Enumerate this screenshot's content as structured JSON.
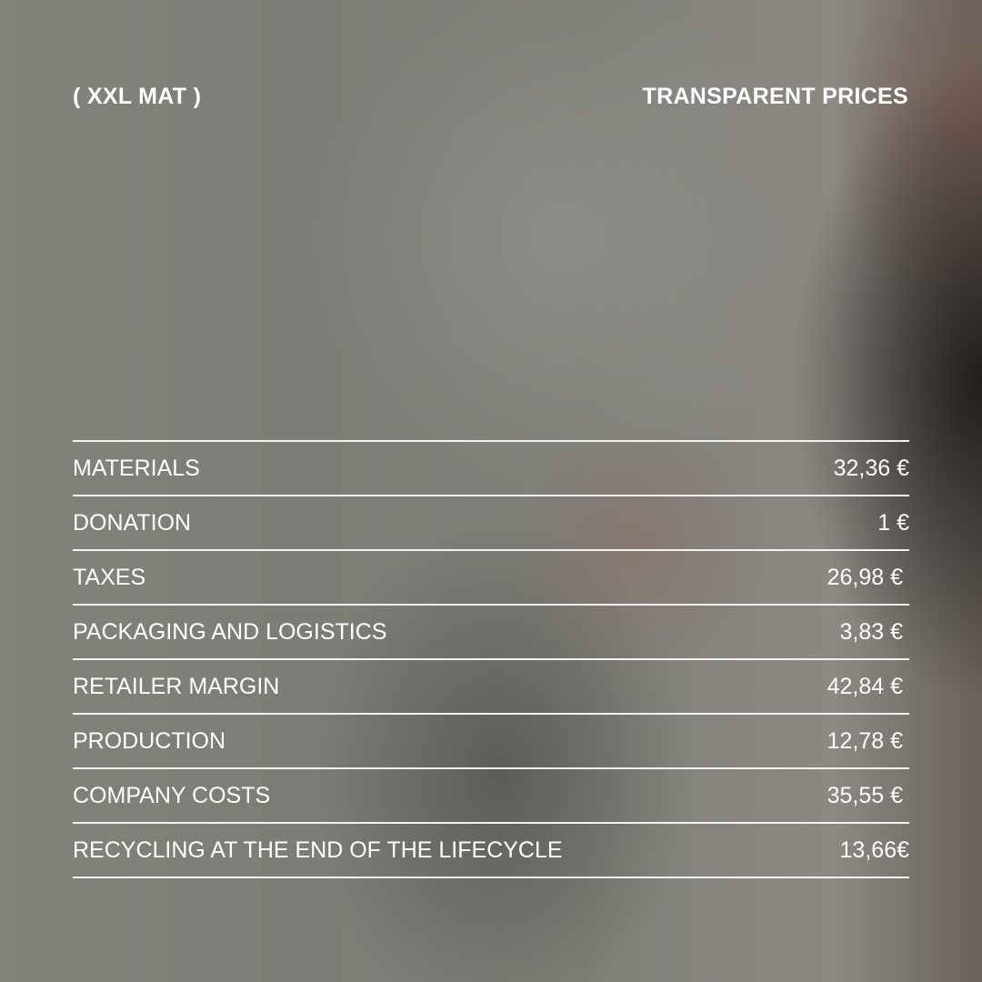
{
  "header": {
    "brand": "( XXL MAT )",
    "title": "TRANSPARENT PRICES"
  },
  "prices": [
    {
      "label": "MATERIALS",
      "value": "32,36 €"
    },
    {
      "label": "DONATION",
      "value": "1 €"
    },
    {
      "label": "TAXES",
      "value": "26,98 €"
    },
    {
      "label": "PACKAGING AND LOGISTICS",
      "value": "3,83 €"
    },
    {
      "label": "RETAILER MARGIN",
      "value": "42,84 €"
    },
    {
      "label": "PRODUCTION",
      "value": "12,78 €"
    },
    {
      "label": "COMPANY COSTS",
      "value": "35,55 €"
    },
    {
      "label": "RECYCLING AT THE END OF THE LIFECYCLE",
      "value": "13,66€"
    }
  ]
}
